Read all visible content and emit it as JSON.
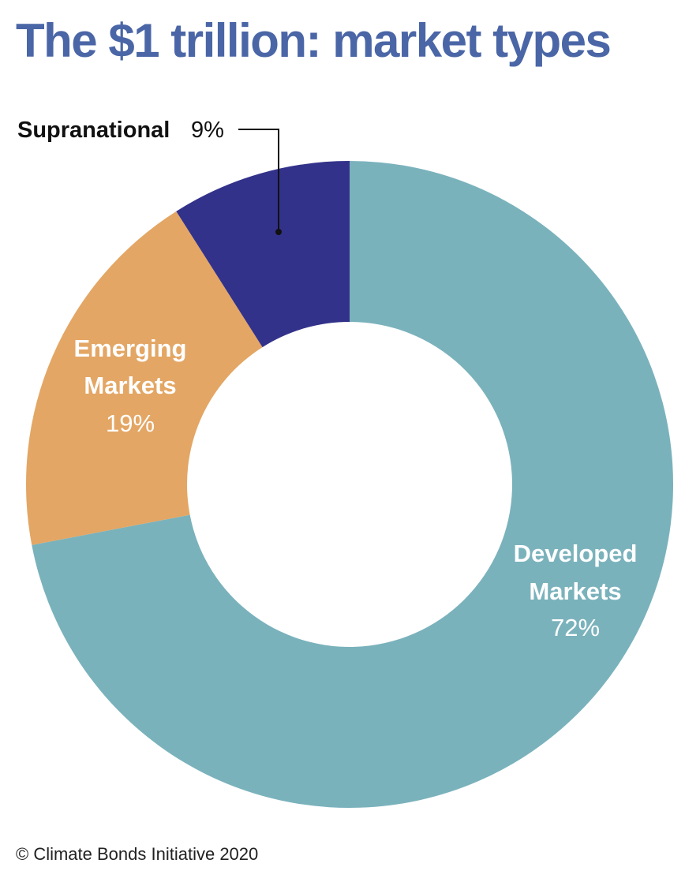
{
  "title": "The $1 trillion: market types",
  "footer": "© Climate Bonds Initiative 2020",
  "colors": {
    "title": "#4a66a6",
    "developed": "#7ab2bc",
    "emerging": "#e3a664",
    "supranational": "#33328a"
  },
  "chart_data": {
    "type": "pie",
    "donut": true,
    "start": "12 o'clock, clockwise",
    "slices": [
      {
        "label_lines": [
          "Developed",
          "Markets"
        ],
        "value_label": "72%",
        "value": 72,
        "color": "#7ab2bc"
      },
      {
        "label_lines": [
          "Emerging",
          "Markets"
        ],
        "value_label": "19%",
        "value": 19,
        "color": "#e3a664"
      },
      {
        "label_lines": [
          "Supranational"
        ],
        "value_label": "9%",
        "value": 9,
        "color": "#33328a"
      }
    ]
  }
}
